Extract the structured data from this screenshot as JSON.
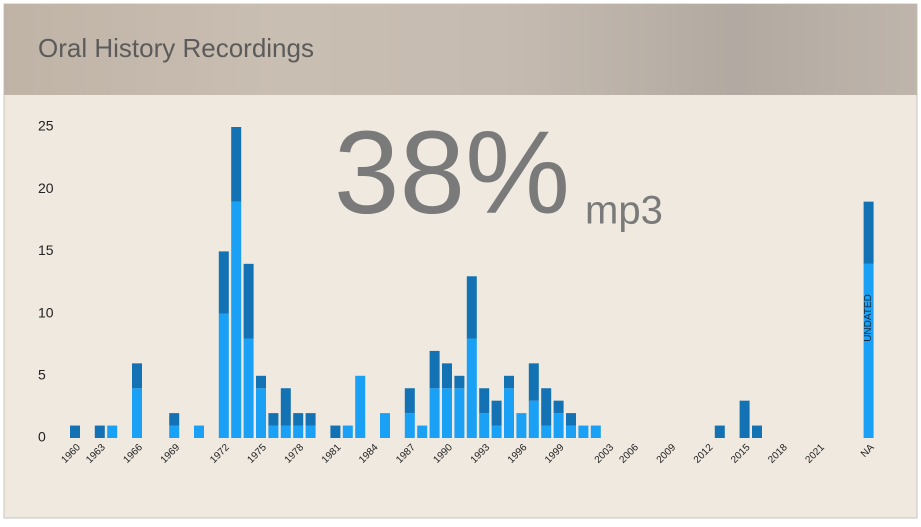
{
  "header": {
    "title": "Oral History Recordings"
  },
  "chart_data": {
    "type": "stacked-bar",
    "annotations": {
      "percent": "38%",
      "unit": "mp3",
      "na_note": "UNDATED"
    },
    "categories": [
      "1960",
      null,
      "1963",
      null,
      null,
      "1966",
      null,
      null,
      "1969",
      null,
      null,
      null,
      "1972",
      null,
      null,
      "1975",
      null,
      null,
      "1978",
      null,
      null,
      "1981",
      null,
      null,
      "1984",
      null,
      null,
      "1987",
      null,
      null,
      "1990",
      null,
      null,
      "1993",
      null,
      null,
      "1996",
      null,
      null,
      "1999",
      null,
      null,
      null,
      "2003",
      null,
      "2006",
      null,
      null,
      "2009",
      null,
      null,
      "2012",
      null,
      null,
      "2015",
      null,
      null,
      "2018",
      null,
      null,
      "2021",
      null,
      null,
      null,
      "NA"
    ],
    "series": [
      {
        "color": "#1aa1f5",
        "values": [
          null,
          null,
          null,
          1,
          null,
          4,
          null,
          null,
          1,
          null,
          1,
          null,
          10,
          19,
          8,
          4,
          1,
          1,
          1,
          1,
          null,
          null,
          1,
          5,
          null,
          2,
          null,
          2,
          1,
          4,
          4,
          4,
          8,
          2,
          1,
          4,
          2,
          3,
          1,
          2,
          1,
          1,
          1,
          null,
          null,
          null,
          null,
          null,
          null,
          null,
          null,
          null,
          null,
          null,
          null,
          null,
          null,
          null,
          null,
          null,
          null,
          null,
          null,
          null,
          14
        ]
      },
      {
        "color": "#1272b3",
        "values": [
          1,
          null,
          1,
          null,
          null,
          2,
          null,
          null,
          1,
          null,
          null,
          null,
          5,
          6,
          6,
          1,
          1,
          3,
          1,
          1,
          null,
          1,
          null,
          null,
          null,
          null,
          null,
          2,
          null,
          3,
          2,
          1,
          5,
          2,
          2,
          1,
          null,
          3,
          3,
          1,
          1,
          null,
          null,
          null,
          null,
          null,
          null,
          null,
          null,
          null,
          null,
          null,
          1,
          null,
          3,
          1,
          null,
          null,
          null,
          null,
          null,
          null,
          null,
          null,
          5
        ]
      }
    ],
    "ylim": [
      0,
      25
    ],
    "yticks": [
      0,
      5,
      10,
      15,
      20,
      25
    ]
  }
}
